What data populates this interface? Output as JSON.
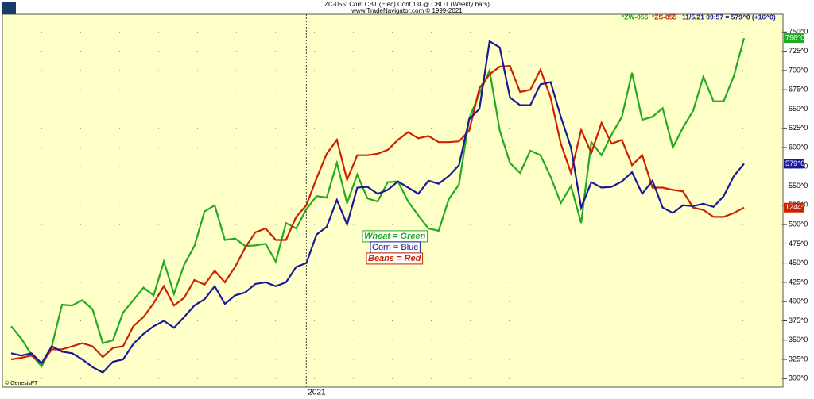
{
  "chart_data": {
    "type": "line",
    "title": "ZC-055:  Corn CBT (Elec) Cont 1st @ CBOT  (Weekly bars)",
    "subtitle": "www.TradeNavigator.com © 1999-2021",
    "credit": "© GenesisFT",
    "annotations": [
      "Wheat = Green",
      "Corn = Blue",
      "Beans = Red"
    ],
    "categories": [
      null,
      null,
      null,
      null,
      null,
      null,
      null,
      null,
      null,
      null,
      null,
      null,
      null,
      null,
      null,
      null,
      null,
      null,
      null,
      null,
      null,
      null,
      null,
      null,
      null,
      null,
      null,
      null,
      null,
      "2021",
      null,
      null,
      null,
      null,
      null,
      null,
      null,
      null,
      null,
      null,
      null,
      null,
      null,
      null,
      null,
      null,
      null,
      null,
      null,
      null,
      null,
      null,
      null,
      null,
      null,
      null,
      null,
      null,
      null,
      null,
      null,
      null,
      null,
      null,
      null,
      null,
      null,
      null,
      null,
      null,
      null,
      null,
      null
    ],
    "series": [
      {
        "name": "*ZW-055",
        "color": "#22aa22",
        "last_label": "796^0",
        "values": [
          368,
          352,
          331,
          316,
          342,
          396,
          395,
          402,
          390,
          346,
          350,
          386,
          402,
          418,
          408,
          452,
          410,
          448,
          472,
          517,
          525,
          480,
          482,
          472,
          473,
          475,
          452,
          502,
          495,
          520,
          537,
          535,
          580,
          528,
          565,
          534,
          530,
          555,
          556,
          530,
          512,
          495,
          492,
          533,
          552,
          638,
          670,
          700,
          622,
          580,
          567,
          596,
          590,
          562,
          528,
          550,
          502,
          607,
          590,
          617,
          640,
          697,
          636,
          640,
          651,
          600,
          626,
          648,
          692,
          660,
          660,
          693,
          742
        ]
      },
      {
        "name": "*ZS-055",
        "color": "#cc2200",
        "last_label": "1244^6",
        "values": [
          325,
          327,
          330,
          320,
          338,
          338,
          342,
          346,
          342,
          328,
          340,
          342,
          368,
          380,
          398,
          420,
          395,
          405,
          428,
          422,
          440,
          425,
          445,
          470,
          490,
          495,
          480,
          480,
          510,
          525,
          560,
          592,
          610,
          558,
          590,
          590,
          592,
          597,
          610,
          620,
          612,
          615,
          607,
          607,
          608,
          622,
          677,
          695,
          705,
          706,
          672,
          675,
          701,
          665,
          605,
          567,
          623,
          593,
          632,
          605,
          610,
          577,
          590,
          548,
          548,
          545,
          543,
          522,
          519,
          510,
          510,
          515,
          522
        ]
      },
      {
        "name": "11/5/21 09:57 = 579^0 (+16^0)",
        "color": "#1a1a99",
        "last_label": "579^0",
        "values": [
          333,
          330,
          333,
          320,
          342,
          335,
          333,
          325,
          315,
          308,
          322,
          325,
          345,
          358,
          368,
          375,
          366,
          380,
          395,
          403,
          420,
          397,
          408,
          412,
          423,
          425,
          420,
          425,
          445,
          450,
          487,
          497,
          532,
          500,
          548,
          549,
          540,
          545,
          556,
          548,
          540,
          557,
          553,
          563,
          577,
          637,
          650,
          738,
          730,
          665,
          655,
          655,
          682,
          685,
          640,
          600,
          522,
          555,
          548,
          549,
          556,
          568,
          540,
          557,
          522,
          515,
          525,
          524,
          527,
          523,
          537,
          563,
          579
        ]
      }
    ],
    "ylim": [
      289,
      773
    ],
    "yticks": [
      {
        "value": 300,
        "label": "300^0"
      },
      {
        "value": 325,
        "label": "325^0"
      },
      {
        "value": 350,
        "label": "350^0"
      },
      {
        "value": 375,
        "label": "375^0"
      },
      {
        "value": 400,
        "label": "400^0"
      },
      {
        "value": 425,
        "label": "425^0"
      },
      {
        "value": 450,
        "label": "450^0"
      },
      {
        "value": 475,
        "label": "475^0"
      },
      {
        "value": 500,
        "label": "500^0"
      },
      {
        "value": 525,
        "label": "525^0"
      },
      {
        "value": 550,
        "label": "550^0"
      },
      {
        "value": 575,
        "label": "575^0"
      },
      {
        "value": 600,
        "label": "600^0"
      },
      {
        "value": 625,
        "label": "625^0"
      },
      {
        "value": 650,
        "label": "650^0"
      },
      {
        "value": 675,
        "label": "675^0"
      },
      {
        "value": 700,
        "label": "700^0"
      },
      {
        "value": 725,
        "label": "725^0"
      },
      {
        "value": 750,
        "label": "750^0"
      }
    ],
    "grid": true
  }
}
